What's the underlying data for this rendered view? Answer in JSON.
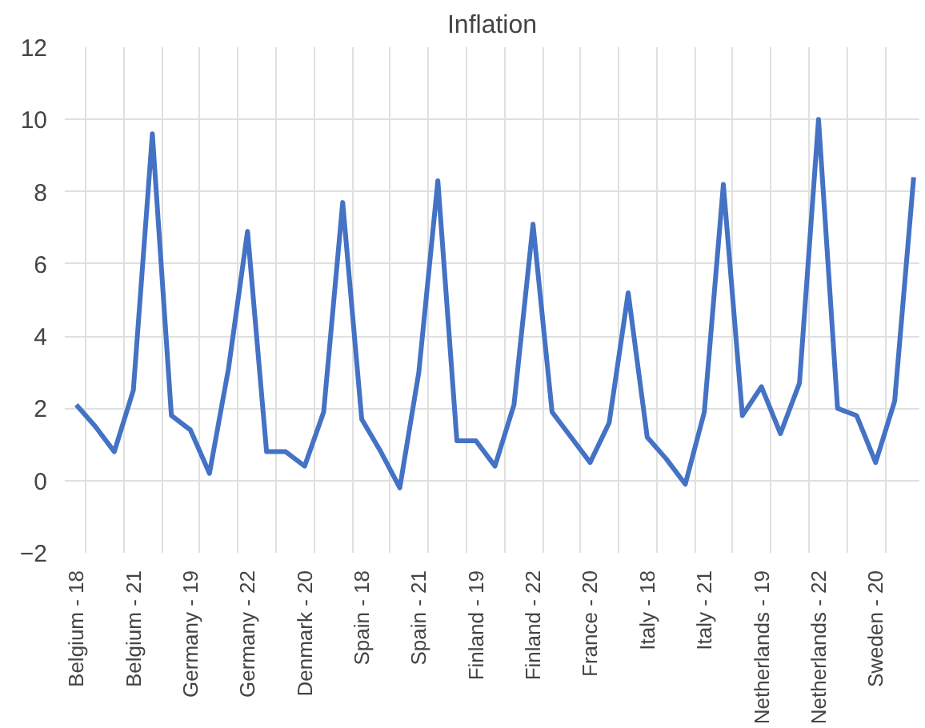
{
  "chart_data": {
    "type": "line",
    "title": "Inflation",
    "categories": [
      "Belgium - 18",
      null,
      null,
      "Belgium - 21",
      null,
      null,
      "Germany - 19",
      null,
      null,
      "Germany - 22",
      null,
      null,
      "Denmark - 20",
      null,
      null,
      "Spain - 18",
      null,
      null,
      "Spain - 21",
      null,
      null,
      "Finland - 19",
      null,
      null,
      "Finland - 22",
      null,
      null,
      "France - 20",
      null,
      null,
      "Italy - 18",
      null,
      null,
      "Italy - 21",
      null,
      null,
      "Netherlands - 19",
      null,
      null,
      "Netherlands - 22",
      null,
      null,
      "Sweden - 20",
      null,
      null
    ],
    "series": [
      {
        "color": "#4472c4",
        "values": [
          2.1,
          1.5,
          0.8,
          2.5,
          9.6,
          1.8,
          1.4,
          0.2,
          3.1,
          6.9,
          0.8,
          0.8,
          0.4,
          1.9,
          7.7,
          1.7,
          0.8,
          -0.2,
          3.0,
          8.3,
          1.1,
          1.1,
          0.4,
          2.1,
          7.1,
          1.9,
          1.2,
          0.5,
          1.6,
          5.2,
          1.2,
          0.6,
          -0.1,
          1.9,
          8.2,
          1.8,
          2.6,
          1.3,
          2.7,
          10.0,
          2.0,
          1.8,
          0.5,
          2.2,
          8.4
        ]
      }
    ],
    "ylim": [
      -2,
      12
    ],
    "yticks": [
      -2,
      0,
      2,
      4,
      6,
      8,
      10,
      12
    ],
    "grid": true,
    "marker": "none",
    "line_style": "solid"
  }
}
